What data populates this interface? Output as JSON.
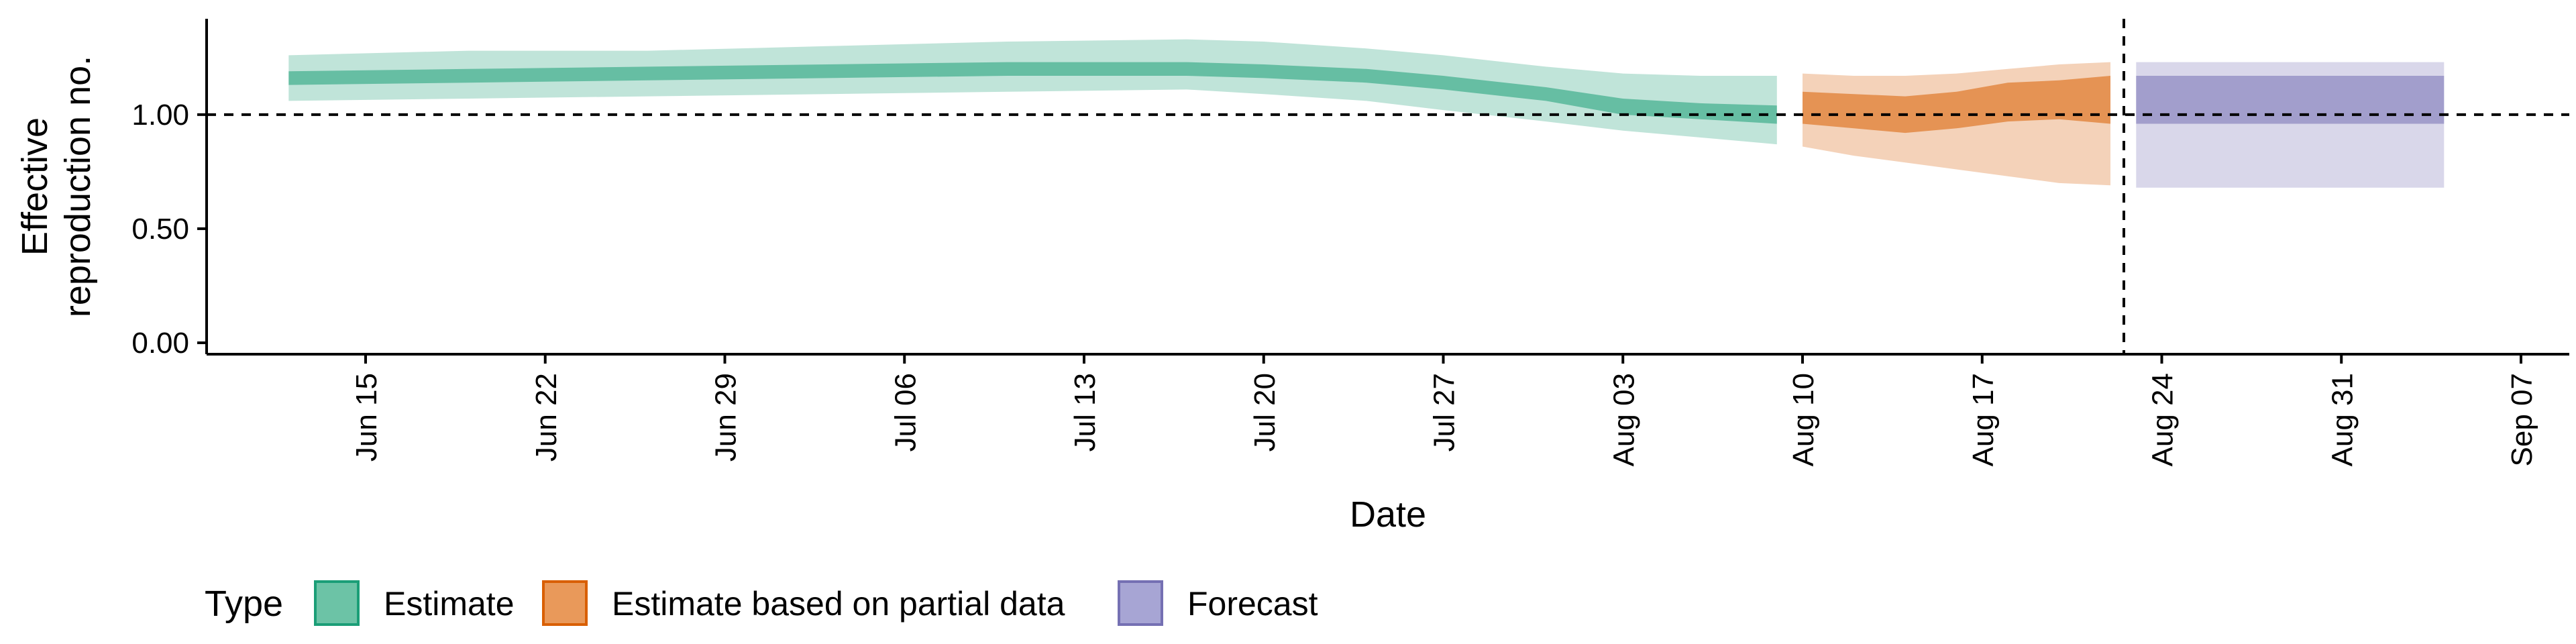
{
  "chart_data": {
    "type": "area",
    "xlabel": "Date",
    "ylabel_lines": [
      "Effective",
      "reproduction no."
    ],
    "x_ticks": [
      "Jun 15",
      "Jun 22",
      "Jun 29",
      "Jul 06",
      "Jul 13",
      "Jul 20",
      "Jul 27",
      "Aug 03",
      "Aug 10",
      "Aug 17",
      "Aug 24",
      "Aug 31",
      "Sep 07"
    ],
    "y_ticks": [
      "0.00",
      "0.50",
      "1.00"
    ],
    "ylim": [
      -0.05,
      1.42
    ],
    "reference_line_y": 1.0,
    "forecast_start_date": "Aug 22",
    "legend": {
      "title": "Type",
      "position": "bottom",
      "entries": [
        {
          "label": "Estimate",
          "fill": "#6cc3a6",
          "stroke": "#1b9e77"
        },
        {
          "label": "Estimate based on partial data",
          "fill": "#e9995a",
          "stroke": "#d95f02"
        },
        {
          "label": "Forecast",
          "fill": "#a7a5d4",
          "stroke": "#7570b3"
        }
      ]
    },
    "series": [
      {
        "name": "Estimate",
        "outer_color": "#1b9e77",
        "inner_color": "#1b9e77",
        "x": [
          "Jun 12",
          "Jun 19",
          "Jun 26",
          "Jul 03",
          "Jul 10",
          "Jul 17",
          "Jul 20",
          "Jul 24",
          "Jul 27",
          "Jul 31",
          "Aug 03",
          "Aug 06",
          "Aug 09"
        ],
        "median": [
          1.16,
          1.17,
          1.17,
          1.18,
          1.19,
          1.2,
          1.19,
          1.17,
          1.14,
          1.09,
          1.04,
          1.01,
          1.0
        ],
        "lower_90": [
          1.06,
          1.07,
          1.08,
          1.09,
          1.1,
          1.11,
          1.09,
          1.06,
          1.02,
          0.97,
          0.93,
          0.9,
          0.87
        ],
        "upper_90": [
          1.26,
          1.28,
          1.28,
          1.3,
          1.32,
          1.33,
          1.32,
          1.29,
          1.26,
          1.21,
          1.18,
          1.17,
          1.17
        ],
        "lower_50": [
          1.13,
          1.14,
          1.15,
          1.16,
          1.17,
          1.17,
          1.16,
          1.14,
          1.11,
          1.06,
          1.0,
          0.98,
          0.96
        ],
        "upper_50": [
          1.19,
          1.2,
          1.21,
          1.22,
          1.23,
          1.23,
          1.22,
          1.2,
          1.17,
          1.12,
          1.07,
          1.05,
          1.04
        ]
      },
      {
        "name": "Estimate based on partial data",
        "outer_color": "#d95f02",
        "inner_color": "#d95f02",
        "x": [
          "Aug 10",
          "Aug 12",
          "Aug 14",
          "Aug 16",
          "Aug 18",
          "Aug 20",
          "Aug 22"
        ],
        "median": [
          1.03,
          1.01,
          0.99,
          1.01,
          1.04,
          1.06,
          1.07
        ],
        "lower_90": [
          0.86,
          0.82,
          0.79,
          0.76,
          0.73,
          0.7,
          0.69
        ],
        "upper_90": [
          1.18,
          1.17,
          1.17,
          1.18,
          1.2,
          1.22,
          1.23
        ],
        "lower_50": [
          0.96,
          0.94,
          0.92,
          0.94,
          0.97,
          0.98,
          0.96
        ],
        "upper_50": [
          1.1,
          1.09,
          1.08,
          1.1,
          1.14,
          1.15,
          1.17
        ]
      },
      {
        "name": "Forecast",
        "outer_color": "#7570b3",
        "inner_color": "#7570b3",
        "x": [
          "Aug 23",
          "Sep 04"
        ],
        "median": [
          1.06,
          1.06
        ],
        "lower_90": [
          0.68,
          0.68
        ],
        "upper_90": [
          1.23,
          1.23
        ],
        "lower_50": [
          0.96,
          0.96
        ],
        "upper_50": [
          1.17,
          1.17
        ]
      }
    ]
  }
}
